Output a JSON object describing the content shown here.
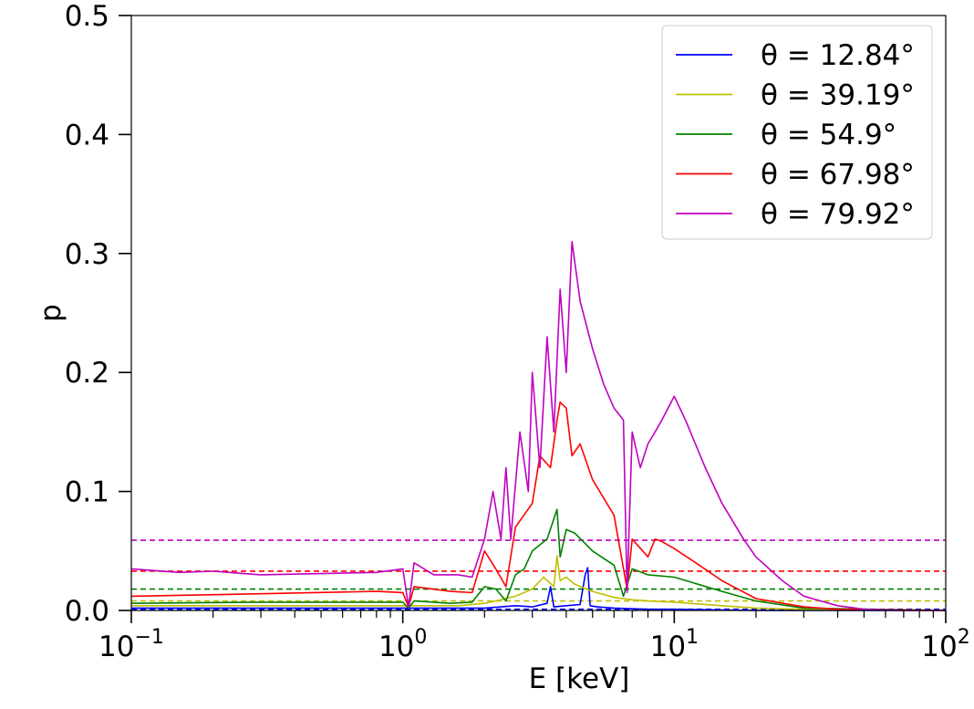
{
  "chart_data": {
    "type": "line",
    "title": "",
    "xlabel": "E [keV]",
    "ylabel": "p",
    "xscale": "log",
    "xlim": [
      0.1,
      100
    ],
    "ylim": [
      0.0,
      0.5
    ],
    "grid": false,
    "legend_position": "top-right",
    "x_tick_labels": [
      {
        "base": "10",
        "exp": "−1",
        "value": 0.1
      },
      {
        "base": "10",
        "exp": "0",
        "value": 1
      },
      {
        "base": "10",
        "exp": "1",
        "value": 10
      },
      {
        "base": "10",
        "exp": "2",
        "value": 100
      }
    ],
    "y_tick_labels": [
      "0.0",
      "0.1",
      "0.2",
      "0.3",
      "0.4",
      "0.5"
    ],
    "y_ticks": [
      0.0,
      0.1,
      0.2,
      0.3,
      0.4,
      0.5
    ],
    "series": [
      {
        "name": "θ  = 12.84°",
        "color": "#0000ff",
        "line": {
          "x": [
            0.1,
            0.3,
            1.0,
            2.0,
            2.6,
            3.0,
            3.4,
            3.5,
            3.6,
            4.0,
            4.5,
            4.7,
            4.8,
            4.9,
            5.2,
            6.0,
            8.0,
            10.0,
            20.0,
            100.0
          ],
          "y": [
            0.002,
            0.002,
            0.002,
            0.002,
            0.004,
            0.003,
            0.006,
            0.02,
            0.003,
            0.004,
            0.005,
            0.03,
            0.036,
            0.004,
            0.003,
            0.002,
            0.001,
            0.001,
            0.0,
            0.0
          ]
        },
        "mean": 0.001
      },
      {
        "name": "θ  = 39.19°",
        "color": "#bfbf00",
        "line": {
          "x": [
            0.1,
            0.3,
            1.0,
            1.6,
            2.0,
            2.3,
            2.6,
            3.0,
            3.3,
            3.6,
            3.7,
            3.8,
            4.0,
            4.3,
            5.0,
            6.0,
            7.0,
            8.0,
            10.0,
            15.0,
            20.0,
            30.0,
            100.0
          ],
          "y": [
            0.004,
            0.004,
            0.004,
            0.004,
            0.006,
            0.009,
            0.012,
            0.018,
            0.028,
            0.02,
            0.046,
            0.025,
            0.028,
            0.022,
            0.016,
            0.011,
            0.009,
            0.008,
            0.007,
            0.004,
            0.002,
            0.001,
            0.0
          ]
        },
        "mean": 0.008
      },
      {
        "name": "θ  = 54.9°",
        "color": "#008000",
        "line": {
          "x": [
            0.1,
            0.3,
            1.0,
            1.05,
            1.1,
            1.5,
            1.8,
            2.0,
            2.2,
            2.4,
            2.6,
            2.8,
            3.0,
            3.4,
            3.7,
            3.8,
            4.0,
            4.3,
            5.0,
            6.0,
            6.5,
            7.0,
            8.0,
            10.0,
            15.0,
            20.0,
            30.0,
            100.0
          ],
          "y": [
            0.006,
            0.007,
            0.007,
            0.002,
            0.008,
            0.006,
            0.007,
            0.02,
            0.018,
            0.008,
            0.03,
            0.035,
            0.05,
            0.06,
            0.085,
            0.045,
            0.068,
            0.065,
            0.05,
            0.038,
            0.012,
            0.035,
            0.03,
            0.028,
            0.016,
            0.008,
            0.002,
            0.0
          ]
        },
        "mean": 0.018
      },
      {
        "name": "θ  = 67.98°",
        "color": "#ff0000",
        "line": {
          "x": [
            0.1,
            0.3,
            0.8,
            1.0,
            1.05,
            1.1,
            1.5,
            1.8,
            2.0,
            2.2,
            2.4,
            2.6,
            3.0,
            3.2,
            3.5,
            3.7,
            3.8,
            4.0,
            4.2,
            4.5,
            5.0,
            6.0,
            6.7,
            7.0,
            8.0,
            8.5,
            9.0,
            10.0,
            12.0,
            15.0,
            20.0,
            30.0,
            40.0,
            100.0
          ],
          "y": [
            0.012,
            0.014,
            0.016,
            0.015,
            0.003,
            0.02,
            0.016,
            0.015,
            0.05,
            0.035,
            0.02,
            0.07,
            0.09,
            0.13,
            0.12,
            0.16,
            0.175,
            0.17,
            0.13,
            0.14,
            0.11,
            0.08,
            0.018,
            0.06,
            0.045,
            0.06,
            0.058,
            0.052,
            0.04,
            0.025,
            0.01,
            0.003,
            0.001,
            0.0
          ]
        },
        "mean": 0.033
      },
      {
        "name": "θ  = 79.92°",
        "color": "#c000c0",
        "line": {
          "x": [
            0.1,
            0.15,
            0.2,
            0.3,
            0.5,
            0.8,
            1.0,
            1.05,
            1.1,
            1.3,
            1.6,
            1.8,
            2.0,
            2.15,
            2.3,
            2.4,
            2.5,
            2.7,
            2.9,
            3.0,
            3.2,
            3.4,
            3.6,
            3.8,
            4.0,
            4.2,
            4.5,
            5.0,
            5.5,
            6.0,
            6.5,
            6.7,
            7.0,
            7.5,
            8.0,
            8.5,
            9.0,
            10.0,
            11.0,
            13.0,
            15.0,
            18.0,
            20.0,
            25.0,
            30.0,
            40.0,
            50.0,
            70.0,
            100.0
          ],
          "y": [
            0.035,
            0.032,
            0.033,
            0.03,
            0.031,
            0.032,
            0.035,
            0.003,
            0.04,
            0.03,
            0.03,
            0.028,
            0.06,
            0.1,
            0.06,
            0.12,
            0.06,
            0.15,
            0.1,
            0.2,
            0.12,
            0.23,
            0.15,
            0.27,
            0.2,
            0.31,
            0.26,
            0.22,
            0.19,
            0.17,
            0.16,
            0.015,
            0.15,
            0.12,
            0.14,
            0.15,
            0.16,
            0.18,
            0.16,
            0.12,
            0.09,
            0.06,
            0.045,
            0.025,
            0.012,
            0.004,
            0.001,
            0.0,
            0.0
          ]
        },
        "mean": 0.059
      }
    ]
  }
}
